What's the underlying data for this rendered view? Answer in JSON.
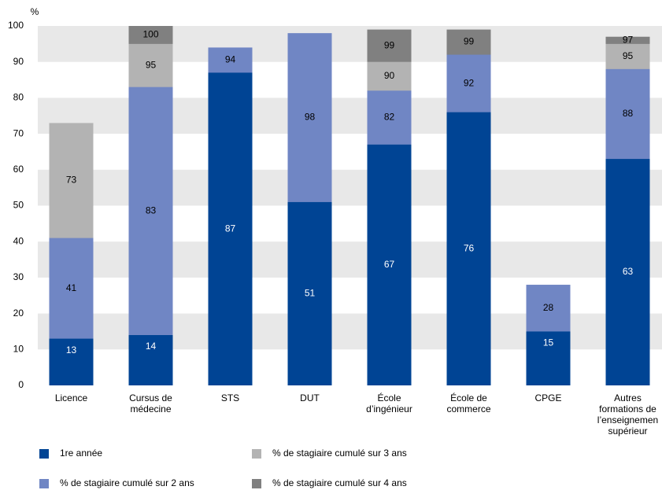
{
  "chart_data": {
    "type": "overlap_bar",
    "y_label": "%",
    "categories": [
      "Licence",
      "Cursus de\nmédecine",
      "STS",
      "DUT",
      "École\nd’ingénieur",
      "École de\ncommerce",
      "CPGE",
      "Autres\nformations de\nl’enseignemen\nsupérieur"
    ],
    "series": [
      {
        "name": "1re année",
        "color": "#004494",
        "values": [
          13,
          14,
          87,
          51,
          67,
          76,
          15,
          63
        ]
      },
      {
        "name": "% de stagiaire cumulé sur 2 ans",
        "color": "#7086c4",
        "values": [
          41,
          83,
          94,
          98,
          82,
          92,
          28,
          88
        ]
      },
      {
        "name": "% de stagiaire cumulé sur 3 ans",
        "color": "#b3b3b3",
        "values": [
          73,
          95,
          null,
          null,
          90,
          null,
          null,
          95
        ]
      },
      {
        "name": "% de stagiaire cumulé sur 4 ans",
        "color": "#808080",
        "values": [
          null,
          100,
          null,
          null,
          99,
          99,
          null,
          97
        ]
      }
    ],
    "ylim": [
      0,
      100
    ],
    "yticks": [
      0,
      10,
      20,
      30,
      40,
      50,
      60,
      70,
      80,
      90,
      100
    ],
    "grid": "bands"
  }
}
